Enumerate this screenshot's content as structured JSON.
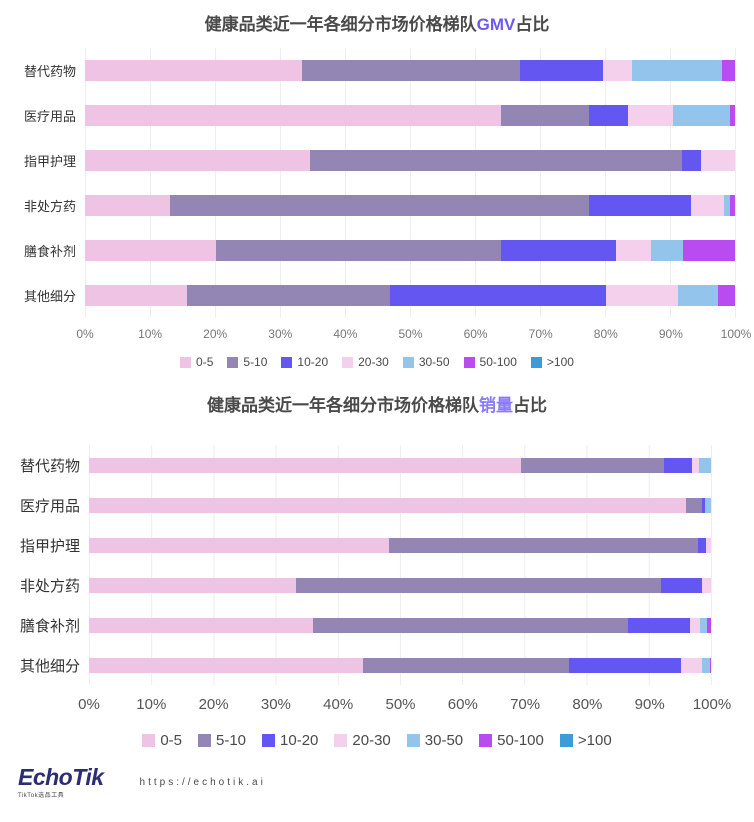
{
  "palette": {
    "tier_colors": [
      "#efc3e3",
      "#9386b5",
      "#6456f0",
      "#f4d0ed",
      "#93c4eb",
      "#b94bf0",
      "#3d9bd9"
    ],
    "title_text_color": "#4a4a4a",
    "gridline_color": "#ededf2",
    "logo_color": "#2c2d72"
  },
  "chart_data": [
    {
      "type": "bar",
      "stacked": true,
      "orientation": "horizontal",
      "unit": "%",
      "title": "健康品类近一年各细分市场价格梯队GMV占比",
      "title_parts": {
        "prefix": "健康品类近一年各细分市场价格梯队",
        "highlight": "GMV",
        "suffix": "占比"
      },
      "highlight_color": "#6a5af0",
      "categories": [
        "替代药物",
        "医疗用品",
        "指甲护理",
        "非处方药",
        "膳食补剂",
        "其他细分"
      ],
      "x_ticks": [
        "0%",
        "10%",
        "20%",
        "30%",
        "40%",
        "50%",
        "60%",
        "70%",
        "80%",
        "90%",
        "100%"
      ],
      "xlim": [
        0,
        100
      ],
      "grid": true,
      "legend_position": "bottom",
      "series": [
        {
          "name": "0-5",
          "values": [
            33.4,
            64.0,
            34.6,
            13.1,
            20.1,
            15.7
          ]
        },
        {
          "name": "5-10",
          "values": [
            33.5,
            13.6,
            57.3,
            64.5,
            43.9,
            31.2
          ]
        },
        {
          "name": "10-20",
          "values": [
            12.8,
            5.9,
            2.8,
            15.6,
            17.7,
            33.3
          ]
        },
        {
          "name": "20-30",
          "values": [
            4.4,
            6.9,
            5.3,
            5.1,
            5.4,
            11.1
          ]
        },
        {
          "name": "30-50",
          "values": [
            13.9,
            8.8,
            0,
            0.9,
            4.9,
            6.1
          ]
        },
        {
          "name": "50-100",
          "values": [
            2.0,
            0.8,
            0,
            0.8,
            8.0,
            2.6
          ]
        },
        {
          "name": ">100",
          "values": [
            0,
            0,
            0,
            0,
            0,
            0
          ]
        }
      ]
    },
    {
      "type": "bar",
      "stacked": true,
      "orientation": "horizontal",
      "unit": "%",
      "title": "健康品类近一年各细分市场价格梯队销量占比",
      "title_parts": {
        "prefix": "健康品类近一年各细分市场价格梯队",
        "highlight": "销量",
        "suffix": "占比"
      },
      "highlight_color": "#8a7cf8",
      "categories": [
        "替代药物",
        "医疗用品",
        "指甲护理",
        "非处方药",
        "膳食补剂",
        "其他细分"
      ],
      "x_ticks": [
        "0%",
        "10%",
        "20%",
        "30%",
        "40%",
        "50%",
        "60%",
        "70%",
        "80%",
        "90%",
        "100%"
      ],
      "xlim": [
        0,
        100
      ],
      "grid": true,
      "legend_position": "bottom",
      "series": [
        {
          "name": "0-5",
          "values": [
            69.5,
            96.0,
            48.3,
            33.2,
            36.0,
            44.0
          ]
        },
        {
          "name": "5-10",
          "values": [
            23.0,
            2.5,
            49.6,
            58.7,
            50.6,
            33.2
          ]
        },
        {
          "name": "10-20",
          "values": [
            4.5,
            0.6,
            1.3,
            6.6,
            10.0,
            18.0
          ]
        },
        {
          "name": "20-30",
          "values": [
            1.0,
            0,
            0.8,
            1.5,
            1.6,
            3.3
          ]
        },
        {
          "name": "30-50",
          "values": [
            2.0,
            0.9,
            0,
            0,
            1.1,
            1.3
          ]
        },
        {
          "name": "50-100",
          "values": [
            0,
            0,
            0,
            0,
            0.7,
            0.2
          ]
        },
        {
          "name": ">100",
          "values": [
            0,
            0,
            0,
            0,
            0,
            0
          ]
        }
      ]
    }
  ],
  "footer": {
    "logo_text": "EchoTik",
    "logo_tagline": "TikTok选品工具",
    "url": "https://echotik.ai"
  }
}
